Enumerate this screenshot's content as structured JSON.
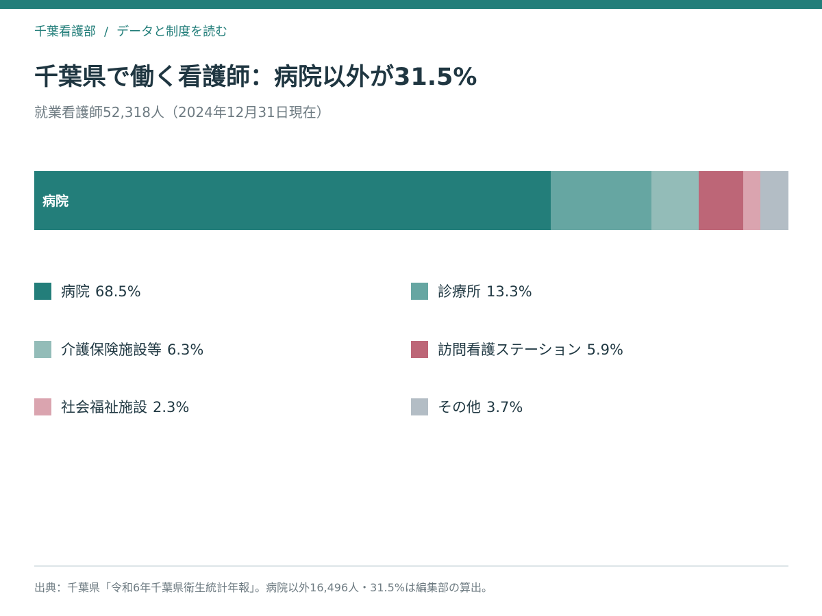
{
  "breadcrumb": {
    "section": "千葉看護部",
    "separator": "/",
    "page": "データと制度を読む"
  },
  "title": "千葉県で働く看護師：病院以外が31.5%",
  "subtitle": "就業看護師52,318人（2024年12月31日現在）",
  "chart_data": {
    "type": "bar",
    "orientation": "horizontal-stacked-100",
    "title": "千葉県で働く看護師：病院以外が31.5%",
    "subtitle": "就業看護師52,318人（2024年12月31日現在）",
    "unit": "%",
    "bar_label": "病院",
    "series": [
      {
        "name": "病院",
        "value": 68.5,
        "value_label": "68.5%",
        "color": "#237e7a"
      },
      {
        "name": "診療所",
        "value": 13.3,
        "value_label": "13.3%",
        "color": "#66a6a2"
      },
      {
        "name": "介護保険施設等",
        "value": 6.3,
        "value_label": "6.3%",
        "color": "#93bcb8"
      },
      {
        "name": "訪問看護ステーション",
        "value": 5.9,
        "value_label": "5.9%",
        "color": "#bd6677"
      },
      {
        "name": "社会福祉施設",
        "value": 2.3,
        "value_label": "2.3%",
        "color": "#daa4af"
      },
      {
        "name": "その他",
        "value": 3.7,
        "value_label": "3.7%",
        "color": "#b3bdc5"
      }
    ],
    "legend_position": "bottom",
    "grid": false
  },
  "source": "出典：千葉県「令和6年千葉県衛生統計年報」。病院以外16,496人・31.5%は編集部の算出。"
}
